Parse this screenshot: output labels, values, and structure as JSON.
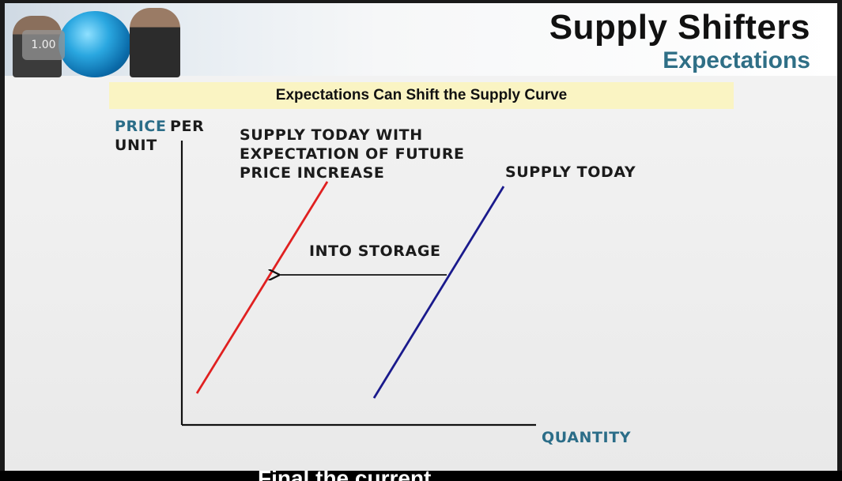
{
  "player": {
    "speed_badge": "1.00"
  },
  "header": {
    "title": "Supply Shifters",
    "subtitle": "Expectations"
  },
  "banner": {
    "text": "Expectations Can Shift the Supply Curve"
  },
  "diagram": {
    "y_axis_label_part1": "PRICE",
    "y_axis_label_part2": "PER",
    "y_axis_label_part3": "UNIT",
    "x_axis_label": "QUANTITY",
    "curve_shifted_label_line1": "SUPPLY TODAY WITH",
    "curve_shifted_label_line2": "EXPECTATION OF FUTURE",
    "curve_shifted_label_line3": "PRICE INCREASE",
    "curve_today_label": "SUPPLY TODAY",
    "arrow_label": "INTO STORAGE",
    "colors": {
      "shifted_curve": "#e02020",
      "today_curve": "#1a1a8c",
      "axis": "#111111",
      "accent_label": "#2b6d88"
    }
  },
  "caption": {
    "partial_text": "Final the current..."
  }
}
